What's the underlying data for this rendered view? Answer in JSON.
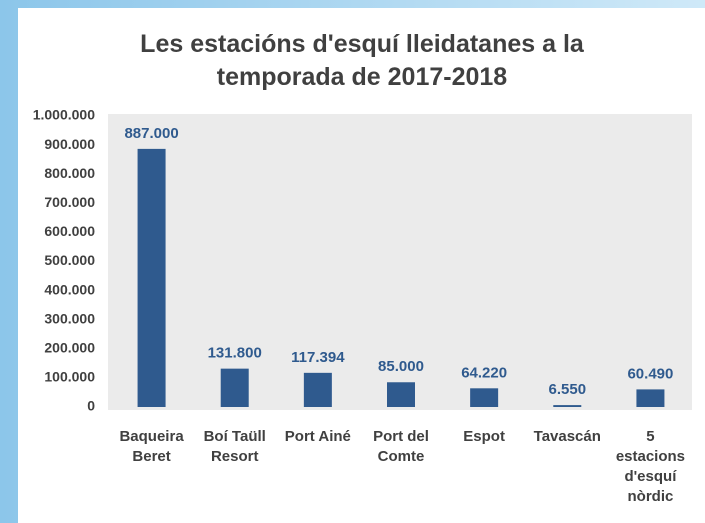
{
  "chart_data": {
    "type": "bar",
    "title": "Les estacións d'esquí lleidatanes a la temporada de 2017-2018",
    "categories": [
      "Baqueira Beret",
      "Boí Taüll Resort",
      "Port Ainé",
      "Port del Comte",
      "Espot",
      "Tavascán",
      "5 estacions d'esquí nòrdic"
    ],
    "values": [
      887000,
      131800,
      117394,
      85000,
      64220,
      6550,
      60490
    ],
    "value_labels": [
      "887.000",
      "131.800",
      "117.394",
      "85.000",
      "64.220",
      "6.550",
      "60.490"
    ],
    "color": "#2f5a8e",
    "ylim": [
      0,
      1000000
    ],
    "yticks": [
      0,
      {
        "value": 100000,
        "label": "100.000"
      },
      {
        "value": 200000,
        "label": "200.000"
      },
      {
        "value": 300000,
        "label": "300.000"
      },
      {
        "value": 400000,
        "label": "400.000"
      },
      {
        "value": 500000,
        "label": "500.000"
      },
      {
        "value": 600000,
        "label": "600.000"
      },
      {
        "value": 700000,
        "label": "700.000"
      },
      {
        "value": 800000,
        "label": "800.000"
      },
      {
        "value": 900000,
        "label": "900.000"
      },
      {
        "value": 1000000,
        "label": "1.000.000"
      }
    ],
    "grid": false
  }
}
